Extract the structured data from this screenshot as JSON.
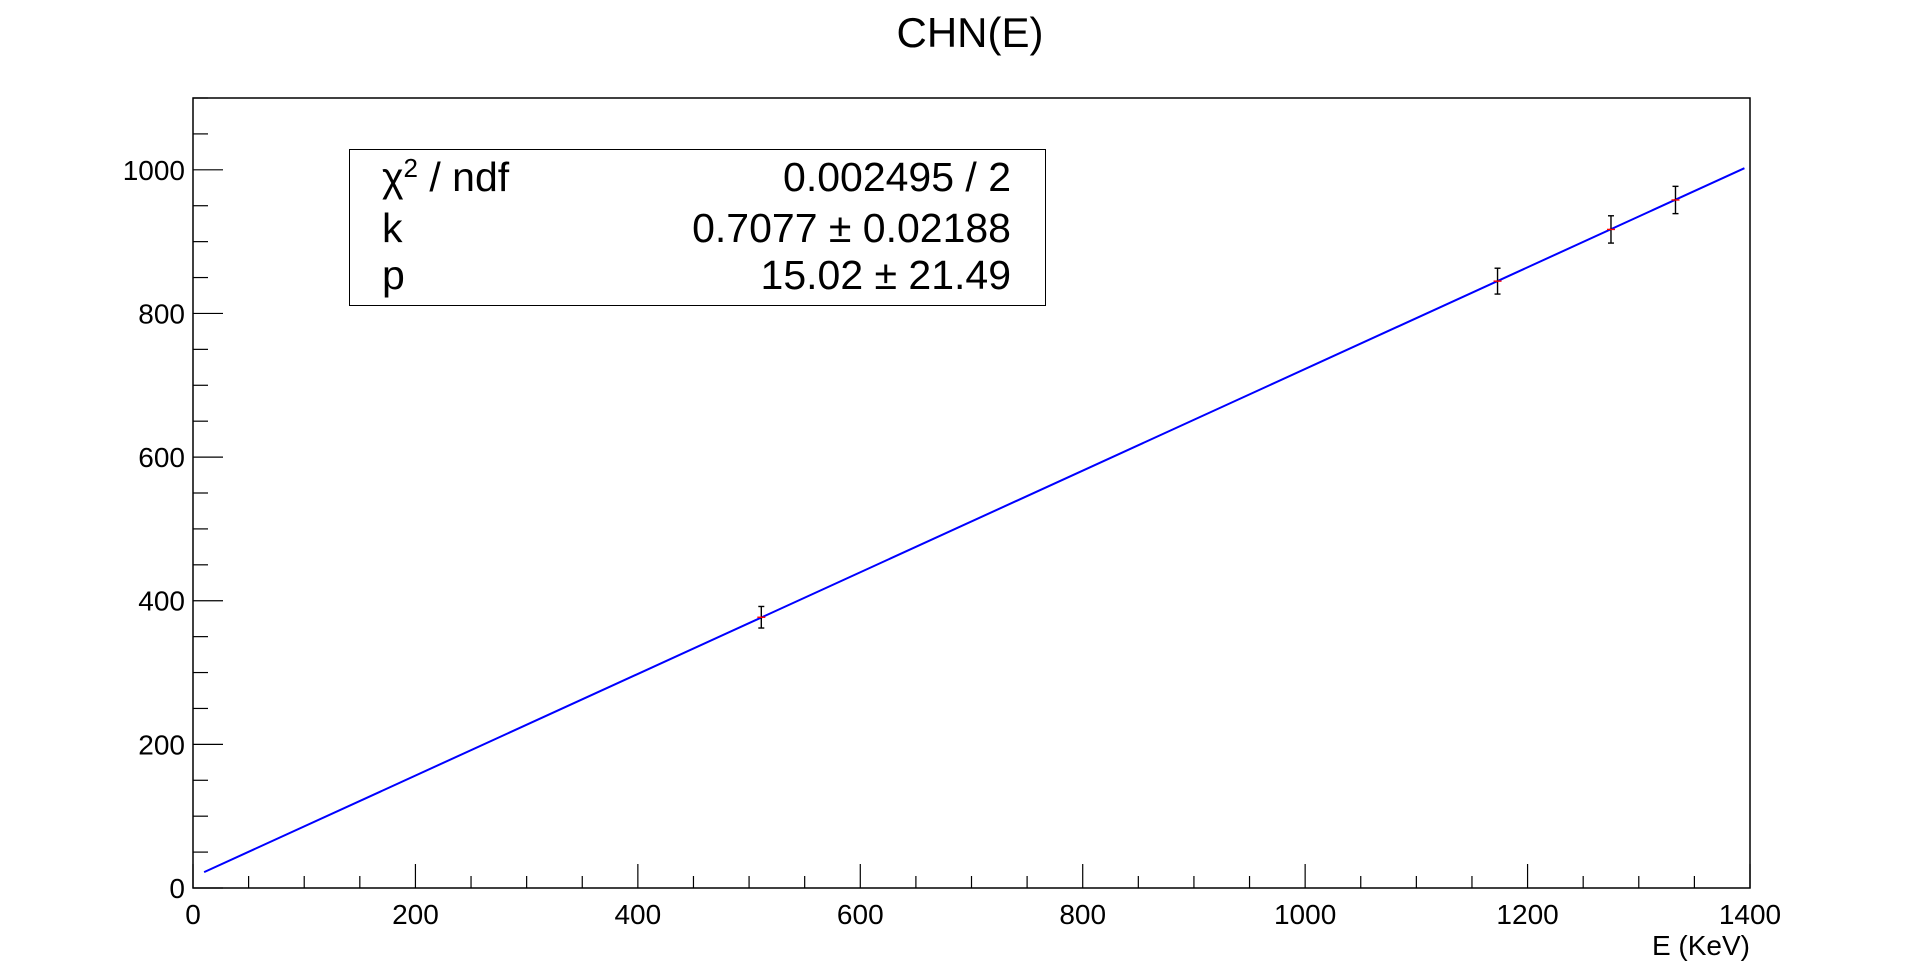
{
  "chart_data": {
    "type": "scatter",
    "title": "CHN(E)",
    "xlabel": "E (KeV)",
    "ylabel": "",
    "xlim": [
      0,
      1400
    ],
    "ylim": [
      0,
      1100
    ],
    "x_ticks": [
      "0",
      "200",
      "400",
      "600",
      "800",
      "1000",
      "1200",
      "1400"
    ],
    "y_ticks": [
      "0",
      "200",
      "400",
      "600",
      "800",
      "1000"
    ],
    "grid": false,
    "points": [
      {
        "x": 511,
        "y": 377,
        "yerr": 15
      },
      {
        "x": 1173,
        "y": 845,
        "yerr": 18
      },
      {
        "x": 1275,
        "y": 917,
        "yerr": 19
      },
      {
        "x": 1333,
        "y": 958,
        "yerr": 19
      }
    ],
    "fit_line": {
      "x_start": 10,
      "x_end": 1395,
      "k": 0.7077,
      "p": 15.02
    },
    "stats_box": {
      "rows": [
        {
          "label_sym": "χ",
          "label_sup": "2",
          "label_rest": " / ndf",
          "value": "0.002495 / 2"
        },
        {
          "label": "k",
          "value": "0.7077 ± 0.02188"
        },
        {
          "label": "p",
          "value": "15.02 ± 21.49"
        }
      ]
    },
    "colors": {
      "fit_line": "#0000ff",
      "points": "#000000",
      "marker": "#ff0000"
    }
  }
}
